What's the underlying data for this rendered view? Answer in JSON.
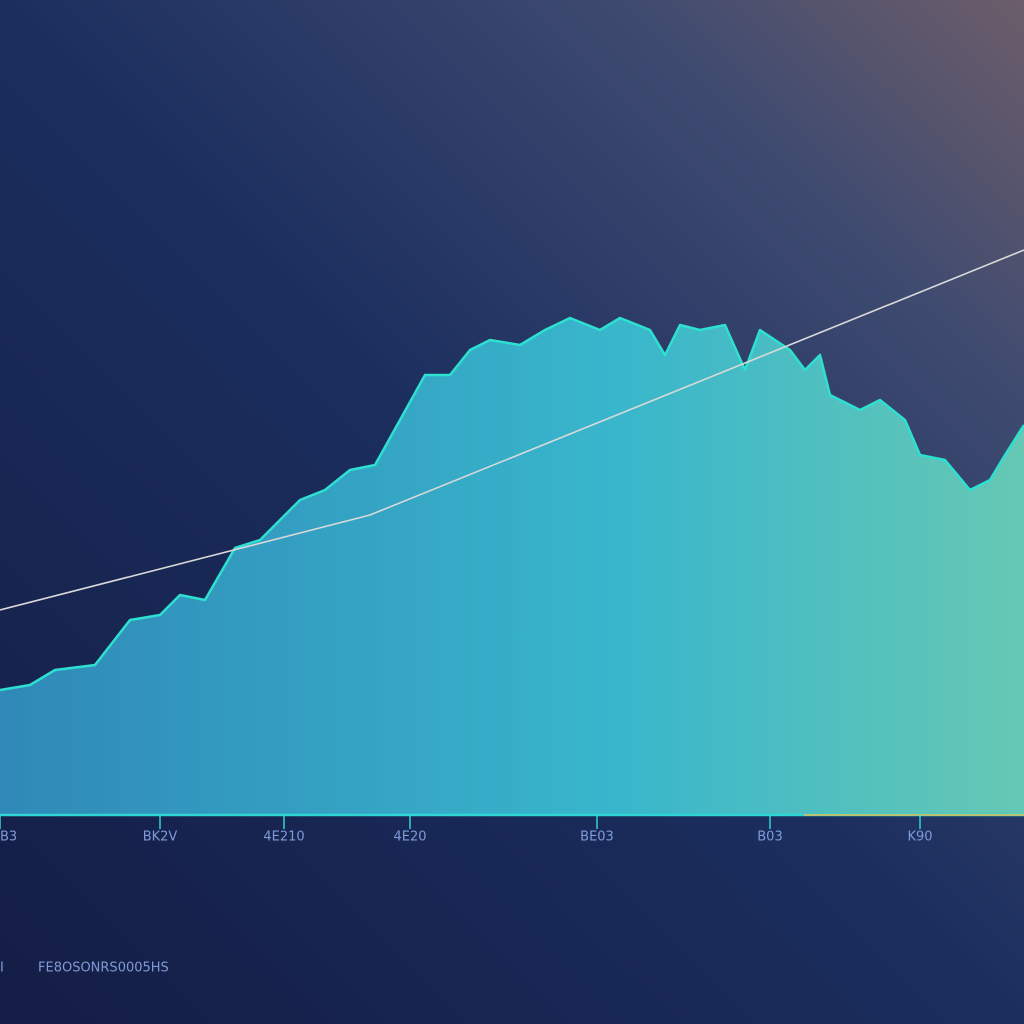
{
  "chart_data": {
    "type": "area",
    "x_axis_color": "#2fd6d6",
    "xlim": [
      0,
      1024
    ],
    "ylim": [
      0,
      815
    ],
    "xticks": [
      {
        "value": 0,
        "label": "B3"
      },
      {
        "value": 160,
        "label": "BK2V"
      },
      {
        "value": 284,
        "label": "4E210"
      },
      {
        "value": 410,
        "label": "4E20"
      },
      {
        "value": 597,
        "label": "BE03"
      },
      {
        "value": 770,
        "label": "B03"
      },
      {
        "value": 920,
        "label": "K90"
      }
    ],
    "series": [
      {
        "color": "#2de0d0",
        "x": [
          0,
          30,
          55,
          95,
          130,
          160,
          180,
          205,
          235,
          260,
          300,
          325,
          350,
          375,
          400,
          425,
          450,
          470,
          490,
          520,
          545,
          570,
          600,
          620,
          650,
          665,
          680,
          700,
          725,
          745,
          760,
          790,
          805,
          820,
          830,
          860,
          880,
          905,
          920,
          945,
          970,
          990,
          1005,
          1024
        ],
        "values": [
          125,
          130,
          145,
          150,
          195,
          200,
          220,
          215,
          267,
          275,
          315,
          325,
          345,
          350,
          395,
          440,
          440,
          465,
          475,
          470,
          485,
          497,
          485,
          497,
          485,
          460,
          490,
          485,
          490,
          445,
          485,
          465,
          445,
          460,
          420,
          405,
          415,
          395,
          360,
          355,
          325,
          335,
          360,
          390
        ]
      },
      {
        "type": "line",
        "color": "#d9d9d9",
        "x": [
          0,
          370,
          1024
        ],
        "values": [
          205,
          300,
          565
        ]
      }
    ],
    "footer": [
      "I",
      "FE8OSONRS0005HS"
    ]
  }
}
